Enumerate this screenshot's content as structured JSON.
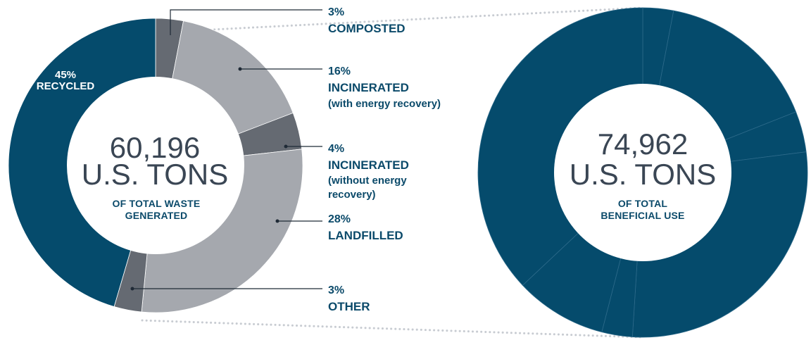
{
  "colors": {
    "dark_blue": "#054b6c",
    "light_gray": "#a5a8ae",
    "dark_gray": "#656a72",
    "leader": "#1f2a36",
    "dots": "#c8ccd2"
  },
  "chart_data": [
    {
      "type": "pie",
      "center": {
        "value": "60,196",
        "unit": "U.S. TONS",
        "caption_1": "OF TOTAL WASTE",
        "caption_2": "GENERATED"
      },
      "slices": [
        {
          "name": "COMPOSTED",
          "percent": 3,
          "label_pct": "3%",
          "label_lines": [
            "COMPOSTED"
          ],
          "color": "#656a72"
        },
        {
          "name": "INCINERATED",
          "percent": 16,
          "label_pct": "16%",
          "label_lines": [
            "INCINERATED",
            "(with energy recovery)"
          ],
          "color": "#a5a8ae"
        },
        {
          "name": "INCINERATED",
          "percent": 4,
          "label_pct": "4%",
          "label_lines": [
            "INCINERATED",
            "(without energy",
            "recovery)"
          ],
          "color": "#656a72"
        },
        {
          "name": "LANDFILLED",
          "percent": 28,
          "label_pct": "28%",
          "label_lines": [
            "LANDFILLED"
          ],
          "color": "#a5a8ae"
        },
        {
          "name": "OTHER",
          "percent": 3,
          "label_pct": "3%",
          "label_lines": [
            "OTHER"
          ],
          "color": "#656a72"
        },
        {
          "name": "RECYCLED",
          "percent": 45,
          "label_pct": "45%",
          "label_lines": [
            "RECYCLED"
          ],
          "color": "#054b6c"
        }
      ]
    },
    {
      "type": "pie",
      "center": {
        "value": "74,962",
        "unit": "U.S. TONS",
        "caption_1": "OF TOTAL",
        "caption_2": "BENEFICIAL USE"
      },
      "slices": [
        {
          "percent": 3,
          "color": "#054b6c"
        },
        {
          "percent": 16,
          "color": "#054b6c"
        },
        {
          "percent": 4,
          "color": "#054b6c"
        },
        {
          "percent": 28,
          "color": "#054b6c"
        },
        {
          "percent": 3,
          "color": "#054b6c"
        },
        {
          "percent": 9,
          "color": "#054b6c"
        },
        {
          "percent": 37,
          "color": "#054b6c"
        }
      ]
    }
  ]
}
